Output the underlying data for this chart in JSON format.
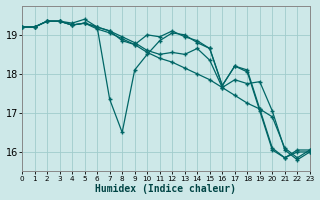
{
  "xlabel": "Humidex (Indice chaleur)",
  "bg_color": "#cde8e8",
  "grid_color": "#a0cccc",
  "line_color": "#006666",
  "xlim": [
    0,
    23
  ],
  "ylim": [
    15.5,
    19.75
  ],
  "xtick_labels": [
    "0",
    "1",
    "2",
    "3",
    "4",
    "5",
    "6",
    "7",
    "8",
    "9",
    "10",
    "11",
    "12",
    "13",
    "14",
    "15",
    "16",
    "17",
    "18",
    "19",
    "20",
    "21",
    "22",
    "23"
  ],
  "ytick_vals": [
    16,
    17,
    18,
    19
  ],
  "series": [
    {
      "x": [
        0,
        1,
        2,
        3,
        4,
        5,
        6,
        7,
        8,
        9,
        10,
        11,
        12,
        13,
        14,
        15,
        16,
        17,
        18,
        19,
        20,
        21,
        22,
        23
      ],
      "y": [
        19.2,
        19.2,
        19.35,
        19.35,
        19.25,
        19.3,
        19.15,
        19.05,
        18.9,
        18.75,
        18.55,
        18.4,
        18.3,
        18.15,
        18.0,
        17.85,
        17.65,
        17.45,
        17.25,
        17.1,
        16.9,
        16.1,
        15.85,
        16.05
      ]
    },
    {
      "x": [
        0,
        1,
        2,
        3,
        4,
        5,
        6,
        7,
        8,
        9,
        10,
        11,
        12,
        13,
        14,
        15,
        16,
        17,
        18,
        19,
        20,
        21,
        22,
        23
      ],
      "y": [
        19.2,
        19.2,
        19.35,
        19.35,
        19.3,
        19.4,
        19.2,
        17.35,
        16.5,
        18.1,
        18.5,
        18.85,
        19.05,
        19.0,
        18.8,
        18.65,
        17.7,
        18.2,
        18.1,
        17.1,
        16.1,
        15.85,
        16.05,
        16.05
      ]
    },
    {
      "x": [
        0,
        1,
        2,
        3,
        4,
        5,
        6,
        7,
        8,
        9,
        10,
        11,
        12,
        13,
        14,
        15,
        16,
        17,
        18,
        19,
        20,
        21,
        22,
        23
      ],
      "y": [
        19.2,
        19.2,
        19.35,
        19.35,
        19.25,
        19.3,
        19.2,
        19.1,
        18.85,
        18.75,
        19.0,
        18.95,
        19.1,
        18.95,
        18.85,
        18.65,
        17.7,
        18.2,
        18.05,
        17.05,
        16.05,
        15.85,
        16.0,
        16.0
      ]
    },
    {
      "x": [
        0,
        1,
        2,
        3,
        4,
        5,
        6,
        7,
        8,
        9,
        10,
        11,
        12,
        13,
        14,
        15,
        16,
        17,
        18,
        19,
        20,
        21,
        22,
        23
      ],
      "y": [
        19.2,
        19.2,
        19.35,
        19.35,
        19.25,
        19.3,
        19.2,
        19.1,
        18.95,
        18.8,
        18.6,
        18.5,
        18.55,
        18.5,
        18.65,
        18.35,
        17.65,
        17.85,
        17.75,
        17.8,
        17.05,
        16.05,
        15.8,
        16.0
      ]
    }
  ]
}
